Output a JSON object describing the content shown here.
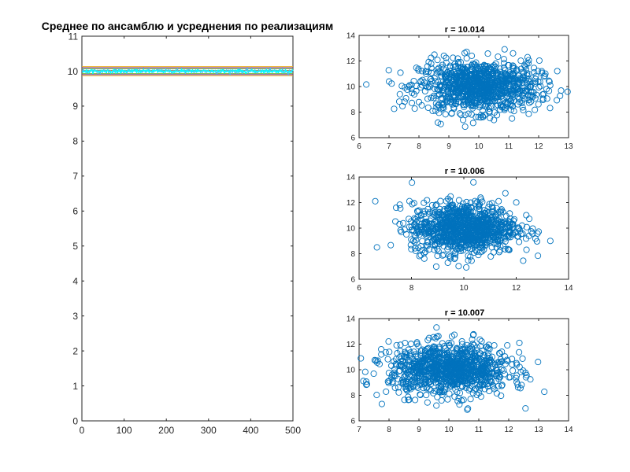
{
  "chart_data": [
    {
      "type": "line",
      "title": "Среднее по ансамблю и усреднения по реализациям",
      "xlim": [
        0,
        500
      ],
      "ylim": [
        0,
        11
      ],
      "xticks": [
        0,
        100,
        200,
        300,
        400,
        500
      ],
      "yticks": [
        0,
        1,
        2,
        3,
        4,
        5,
        6,
        7,
        8,
        9,
        10,
        11
      ],
      "grid": false,
      "series": [
        {
          "kind": "constant",
          "value": 10.13,
          "color": "#EDB120"
        },
        {
          "kind": "constant",
          "value": 9.87,
          "color": "#EDB120"
        },
        {
          "kind": "constant",
          "value": 10.1,
          "color": "#7E2F8E"
        },
        {
          "kind": "constant",
          "value": 9.9,
          "color": "#7E2F8E"
        },
        {
          "kind": "constant",
          "value": 10.07,
          "color": "#77AC30"
        },
        {
          "kind": "constant",
          "value": 9.93,
          "color": "#77AC30"
        },
        {
          "kind": "constant",
          "value": 10.02,
          "color": "#D95319"
        },
        {
          "kind": "noisy",
          "center": 10.0,
          "amplitude": 0.07,
          "color": "#4DBEEE"
        },
        {
          "kind": "noisy",
          "center": 10.0,
          "amplitude": 0.05,
          "color": "#00FFFF"
        }
      ]
    },
    {
      "type": "scatter",
      "title": "r = 10.014",
      "xlim": [
        6,
        13
      ],
      "ylim": [
        6,
        14
      ],
      "xticks": [
        6,
        7,
        8,
        9,
        10,
        11,
        12,
        13
      ],
      "yticks": [
        6,
        8,
        10,
        12,
        14
      ],
      "color": "#0072BD",
      "distribution": {
        "mean_x": 10.0,
        "mean_y": 10.0,
        "sd_x": 1.0,
        "sd_y": 1.0,
        "n": 1000
      }
    },
    {
      "type": "scatter",
      "title": "r = 10.006",
      "xlim": [
        6,
        14
      ],
      "ylim": [
        6,
        14
      ],
      "xticks": [
        6,
        8,
        10,
        12,
        14
      ],
      "yticks": [
        6,
        8,
        10,
        12,
        14
      ],
      "color": "#0072BD",
      "distribution": {
        "mean_x": 10.0,
        "mean_y": 10.0,
        "sd_x": 1.0,
        "sd_y": 1.0,
        "n": 1000
      }
    },
    {
      "type": "scatter",
      "title": "r = 10.007",
      "xlim": [
        7,
        14
      ],
      "ylim": [
        6,
        14
      ],
      "xticks": [
        7,
        8,
        9,
        10,
        11,
        12,
        13,
        14
      ],
      "yticks": [
        6,
        8,
        10,
        12,
        14
      ],
      "color": "#0072BD",
      "distribution": {
        "mean_x": 10.0,
        "mean_y": 10.0,
        "sd_x": 1.0,
        "sd_y": 1.0,
        "n": 1000
      }
    }
  ]
}
